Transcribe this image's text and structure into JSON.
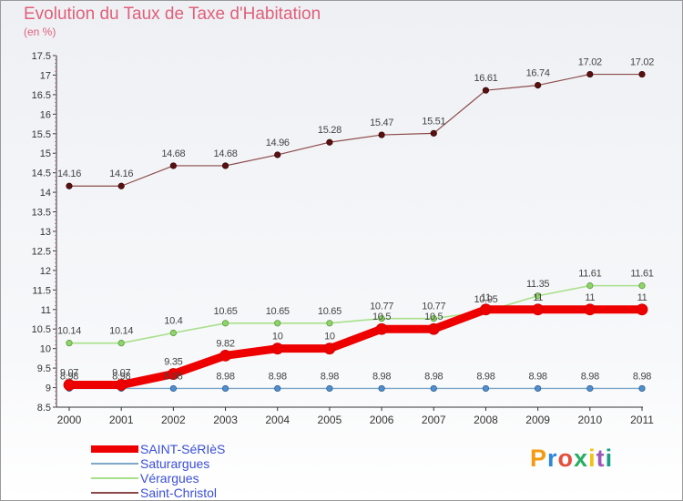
{
  "header": {
    "title": "Evolution du Taux de Taxe d'Habitation",
    "unit": "(en %)"
  },
  "logo": {
    "text": "Proxiti",
    "colors": [
      "#f39c12",
      "#2e86de",
      "#e74c3c",
      "#27ae60",
      "#f1c40f",
      "#9b59b6",
      "#16a085"
    ]
  },
  "chart_data": {
    "type": "line",
    "title": "Evolution du Taux de Taxe d'Habitation",
    "ylabel": "(en %)",
    "xlabel": "",
    "categories": [
      "2000",
      "2001",
      "2002",
      "2003",
      "2004",
      "2005",
      "2006",
      "2007",
      "2008",
      "2009",
      "2010",
      "2011"
    ],
    "ylim": [
      8.5,
      17.5
    ],
    "yticks": [
      "8.5",
      "9",
      "9.5",
      "10",
      "10.5",
      "11",
      "11.5",
      "12",
      "12.5",
      "13",
      "13.5",
      "14",
      "14.5",
      "15",
      "15.5",
      "16",
      "16.5",
      "17",
      "17.5"
    ],
    "grid": false,
    "legend_position": "bottom-left",
    "series": [
      {
        "name": "SAINT-SéRIèS",
        "color": "#ee0000",
        "values": [
          9.07,
          9.07,
          9.35,
          9.82,
          10,
          10,
          10.5,
          10.5,
          11,
          11,
          11,
          11
        ],
        "labels": [
          "9.07",
          "9.07",
          "9.35",
          "9.82",
          "10",
          "10",
          "10.5",
          "10.5",
          "11",
          "11",
          "11",
          "11"
        ]
      },
      {
        "name": "Saturargues",
        "color": "#7fa8c8",
        "values": [
          8.98,
          8.98,
          8.98,
          8.98,
          8.98,
          8.98,
          8.98,
          8.98,
          8.98,
          8.98,
          8.98,
          8.98
        ],
        "labels": [
          "8.98",
          "8.98",
          "8.98",
          "8.98",
          "8.98",
          "8.98",
          "8.98",
          "8.98",
          "8.98",
          "8.98",
          "8.98",
          "8.98"
        ]
      },
      {
        "name": "Vérargues",
        "color": "#a8e08a",
        "values": [
          10.14,
          10.14,
          10.4,
          10.65,
          10.65,
          10.65,
          10.77,
          10.77,
          10.95,
          11.35,
          11.61,
          11.61
        ],
        "labels": [
          "10.14",
          "10.14",
          "10.4",
          "10.65",
          "10.65",
          "10.65",
          "10.77",
          "10.77",
          "10.95",
          "11.35",
          "11.61",
          "11.61"
        ]
      },
      {
        "name": "Saint-Christol",
        "color": "#8b4a4a",
        "values": [
          14.16,
          14.16,
          14.68,
          14.68,
          14.96,
          15.28,
          15.47,
          15.51,
          16.61,
          16.74,
          17.02,
          17.02
        ],
        "labels": [
          "14.16",
          "14.16",
          "14.68",
          "14.68",
          "14.96",
          "15.28",
          "15.47",
          "15.51",
          "16.61",
          "16.74",
          "17.02",
          "17.02"
        ]
      }
    ]
  }
}
